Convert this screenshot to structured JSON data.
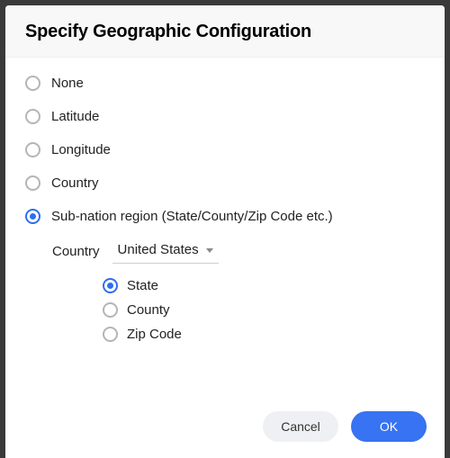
{
  "dialog": {
    "title": "Specify Geographic Configuration"
  },
  "options": {
    "none": {
      "label": "None",
      "checked": false
    },
    "latitude": {
      "label": "Latitude",
      "checked": false
    },
    "longitude": {
      "label": "Longitude",
      "checked": false
    },
    "country": {
      "label": "Country",
      "checked": false
    },
    "subnation": {
      "label": "Sub-nation region (State/County/Zip Code etc.)",
      "checked": true
    }
  },
  "subnation": {
    "country_label": "Country",
    "country_value": "United States",
    "levels": {
      "state": {
        "label": "State",
        "checked": true
      },
      "county": {
        "label": "County",
        "checked": false
      },
      "zip": {
        "label": "Zip Code",
        "checked": false
      }
    }
  },
  "buttons": {
    "cancel": "Cancel",
    "ok": "OK"
  },
  "colors": {
    "accent": "#3773f2",
    "radio_border": "#b5b5b5",
    "background": "#ffffff",
    "overlay": "#3a3a3a",
    "cancel_bg": "#eef0f3"
  }
}
